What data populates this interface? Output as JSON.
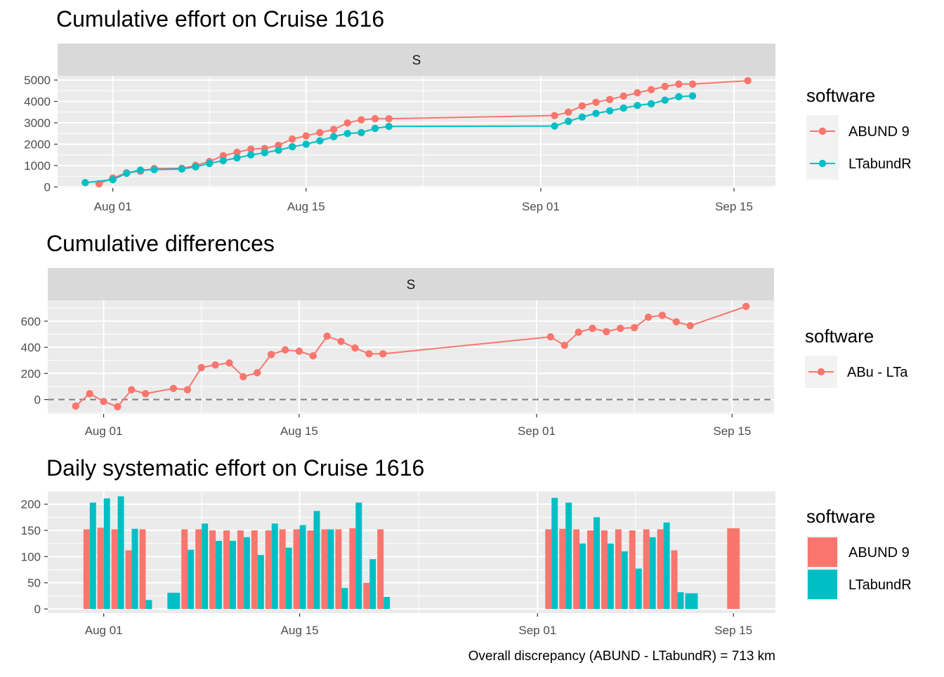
{
  "chart_data": [
    {
      "type": "line",
      "title": "Cumulative effort on Cruise 1616",
      "facet_label": "S",
      "xlabel": "",
      "ylabel": "",
      "x_type": "date",
      "x_ticks": [
        "2019-08-01",
        "2019-08-15",
        "2019-09-01",
        "2019-09-15"
      ],
      "x_tick_labels": [
        "Aug 01",
        "Aug 15",
        "Sep 01",
        "Sep 15"
      ],
      "xlim": [
        "2019-07-28",
        "2019-09-18"
      ],
      "y_ticks": [
        0,
        1000,
        2000,
        3000,
        4000,
        5000
      ],
      "ylim": [
        -50,
        5200
      ],
      "grid": true,
      "legend_title": "software",
      "legend_position": "right",
      "series": [
        {
          "name": "ABUND 9",
          "color": "#F8766D",
          "x": [
            "2019-07-31",
            "2019-08-01",
            "2019-08-02",
            "2019-08-03",
            "2019-08-04",
            "2019-08-06",
            "2019-08-07",
            "2019-08-08",
            "2019-08-09",
            "2019-08-10",
            "2019-08-11",
            "2019-08-12",
            "2019-08-13",
            "2019-08-14",
            "2019-08-15",
            "2019-08-16",
            "2019-08-17",
            "2019-08-18",
            "2019-08-19",
            "2019-08-20",
            "2019-08-21",
            "2019-09-02",
            "2019-09-03",
            "2019-09-04",
            "2019-09-05",
            "2019-09-06",
            "2019-09-07",
            "2019-09-08",
            "2019-09-09",
            "2019-09-10",
            "2019-09-11",
            "2019-09-12",
            "2019-09-16"
          ],
          "y": [
            150,
            420,
            660,
            740,
            860,
            870,
            1010,
            1190,
            1460,
            1620,
            1770,
            1800,
            1950,
            2240,
            2390,
            2540,
            2690,
            2990,
            3140,
            3190,
            3190,
            3340,
            3500,
            3790,
            3960,
            4090,
            4250,
            4400,
            4550,
            4700,
            4810,
            4810,
            4970
          ]
        },
        {
          "name": "LTabundR",
          "color": "#00BFC4",
          "x": [
            "2019-07-30",
            "2019-08-01",
            "2019-08-02",
            "2019-08-03",
            "2019-08-04",
            "2019-08-06",
            "2019-08-07",
            "2019-08-08",
            "2019-08-09",
            "2019-08-10",
            "2019-08-11",
            "2019-08-12",
            "2019-08-13",
            "2019-08-14",
            "2019-08-15",
            "2019-08-16",
            "2019-08-17",
            "2019-08-18",
            "2019-08-19",
            "2019-08-20",
            "2019-08-21",
            "2019-09-02",
            "2019-09-03",
            "2019-09-04",
            "2019-09-05",
            "2019-09-06",
            "2019-09-07",
            "2019-09-08",
            "2019-09-09",
            "2019-09-10",
            "2019-09-11",
            "2019-09-12"
          ],
          "y": [
            200,
            340,
            640,
            790,
            810,
            840,
            940,
            1100,
            1230,
            1360,
            1500,
            1600,
            1720,
            1880,
            2000,
            2160,
            2350,
            2500,
            2540,
            2740,
            2830,
            2850,
            3070,
            3270,
            3440,
            3560,
            3690,
            3810,
            3890,
            4060,
            4220,
            4260
          ]
        }
      ]
    },
    {
      "type": "line",
      "title": "Cumulative differences",
      "facet_label": "S",
      "xlabel": "",
      "ylabel": "",
      "x_type": "date",
      "x_ticks": [
        "2019-08-01",
        "2019-08-15",
        "2019-09-01",
        "2019-09-15"
      ],
      "x_tick_labels": [
        "Aug 01",
        "Aug 15",
        "Sep 01",
        "Sep 15"
      ],
      "xlim": [
        "2019-07-28",
        "2019-09-18"
      ],
      "y_ticks": [
        0,
        200,
        400,
        600
      ],
      "ylim": [
        -110,
        760
      ],
      "reference_line": {
        "y": 0,
        "style": "dashed",
        "color": "#7f7f7f"
      },
      "grid": true,
      "legend_title": "software",
      "legend_position": "right",
      "series": [
        {
          "name": "ABu - LTa",
          "color": "#F8766D",
          "x": [
            "2019-07-30",
            "2019-07-31",
            "2019-08-01",
            "2019-08-02",
            "2019-08-03",
            "2019-08-04",
            "2019-08-06",
            "2019-08-07",
            "2019-08-08",
            "2019-08-09",
            "2019-08-10",
            "2019-08-11",
            "2019-08-12",
            "2019-08-13",
            "2019-08-14",
            "2019-08-15",
            "2019-08-16",
            "2019-08-17",
            "2019-08-18",
            "2019-08-19",
            "2019-08-20",
            "2019-08-21",
            "2019-09-02",
            "2019-09-03",
            "2019-09-04",
            "2019-09-05",
            "2019-09-06",
            "2019-09-07",
            "2019-09-08",
            "2019-09-09",
            "2019-09-10",
            "2019-09-11",
            "2019-09-12",
            "2019-09-16"
          ],
          "y": [
            -50,
            45,
            -15,
            -55,
            75,
            45,
            85,
            75,
            245,
            265,
            280,
            175,
            205,
            345,
            380,
            370,
            335,
            485,
            445,
            395,
            350,
            350,
            480,
            415,
            515,
            545,
            520,
            545,
            550,
            630,
            645,
            595,
            565,
            713
          ]
        }
      ]
    },
    {
      "type": "bar",
      "title": "Daily systematic effort on Cruise 1616",
      "xlabel": "",
      "ylabel": "",
      "x_type": "date",
      "x_ticks": [
        "2019-08-01",
        "2019-08-15",
        "2019-09-01",
        "2019-09-15"
      ],
      "x_tick_labels": [
        "Aug 01",
        "Aug 15",
        "Sep 01",
        "Sep 15"
      ],
      "xlim": [
        "2019-07-28",
        "2019-09-18"
      ],
      "y_ticks": [
        0,
        50,
        100,
        150,
        200
      ],
      "ylim": [
        -8,
        225
      ],
      "position": "dodge",
      "grid": true,
      "legend_title": "software",
      "legend_position": "right",
      "caption": "Overall discrepancy (ABUND - LTabundR) = 713 km",
      "series": [
        {
          "name": "ABUND 9",
          "color": "#F8766D",
          "x": [
            "2019-07-31",
            "2019-08-01",
            "2019-08-02",
            "2019-08-03",
            "2019-08-04",
            "2019-08-07",
            "2019-08-08",
            "2019-08-09",
            "2019-08-10",
            "2019-08-11",
            "2019-08-12",
            "2019-08-13",
            "2019-08-14",
            "2019-08-15",
            "2019-08-16",
            "2019-08-17",
            "2019-08-18",
            "2019-08-19",
            "2019-08-20",
            "2019-08-21",
            "2019-09-02",
            "2019-09-03",
            "2019-09-04",
            "2019-09-05",
            "2019-09-06",
            "2019-09-07",
            "2019-09-08",
            "2019-09-09",
            "2019-09-10",
            "2019-09-11",
            "2019-09-15"
          ],
          "y": [
            152,
            155,
            152,
            112,
            152,
            152,
            152,
            150,
            150,
            150,
            150,
            150,
            152,
            152,
            150,
            152,
            152,
            154,
            50,
            152,
            152,
            153,
            152,
            150,
            150,
            152,
            150,
            152,
            152,
            112,
            154
          ]
        },
        {
          "name": "LTabundR",
          "color": "#00BFC4",
          "x": [
            "2019-07-31",
            "2019-08-01",
            "2019-08-02",
            "2019-08-03",
            "2019-08-04",
            "2019-08-06",
            "2019-08-07",
            "2019-08-08",
            "2019-08-09",
            "2019-08-10",
            "2019-08-11",
            "2019-08-12",
            "2019-08-13",
            "2019-08-14",
            "2019-08-15",
            "2019-08-16",
            "2019-08-17",
            "2019-08-18",
            "2019-08-19",
            "2019-08-20",
            "2019-08-21",
            "2019-09-02",
            "2019-09-03",
            "2019-09-04",
            "2019-09-05",
            "2019-09-06",
            "2019-09-07",
            "2019-09-08",
            "2019-09-09",
            "2019-09-10",
            "2019-09-11",
            "2019-09-12"
          ],
          "y": [
            203,
            211,
            215,
            153,
            17,
            31,
            113,
            163,
            130,
            130,
            137,
            103,
            163,
            117,
            160,
            187,
            152,
            40,
            203,
            95,
            23,
            212,
            203,
            125,
            175,
            125,
            110,
            77,
            137,
            165,
            32,
            30
          ]
        }
      ]
    }
  ]
}
